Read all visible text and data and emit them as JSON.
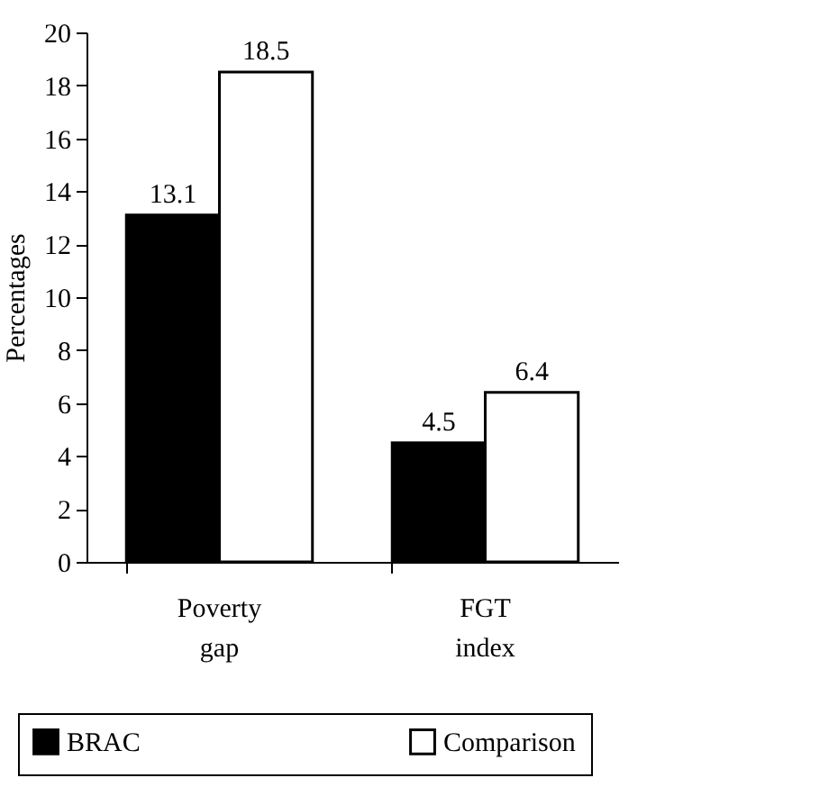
{
  "chart_data": {
    "type": "bar",
    "ylabel": "Percentages",
    "categories": [
      "Poverty gap",
      "FGT index"
    ],
    "series": [
      {
        "name": "BRAC",
        "color": "#000000",
        "values": [
          13.1,
          4.5
        ]
      },
      {
        "name": "Comparison",
        "color": "#ffffff",
        "values": [
          18.5,
          6.4
        ]
      }
    ],
    "ylim": [
      0,
      20
    ],
    "yticks": [
      0,
      2,
      4,
      6,
      8,
      10,
      12,
      14,
      16,
      18,
      20
    ],
    "data_labels": true,
    "grid": false,
    "legend": "bottom"
  }
}
